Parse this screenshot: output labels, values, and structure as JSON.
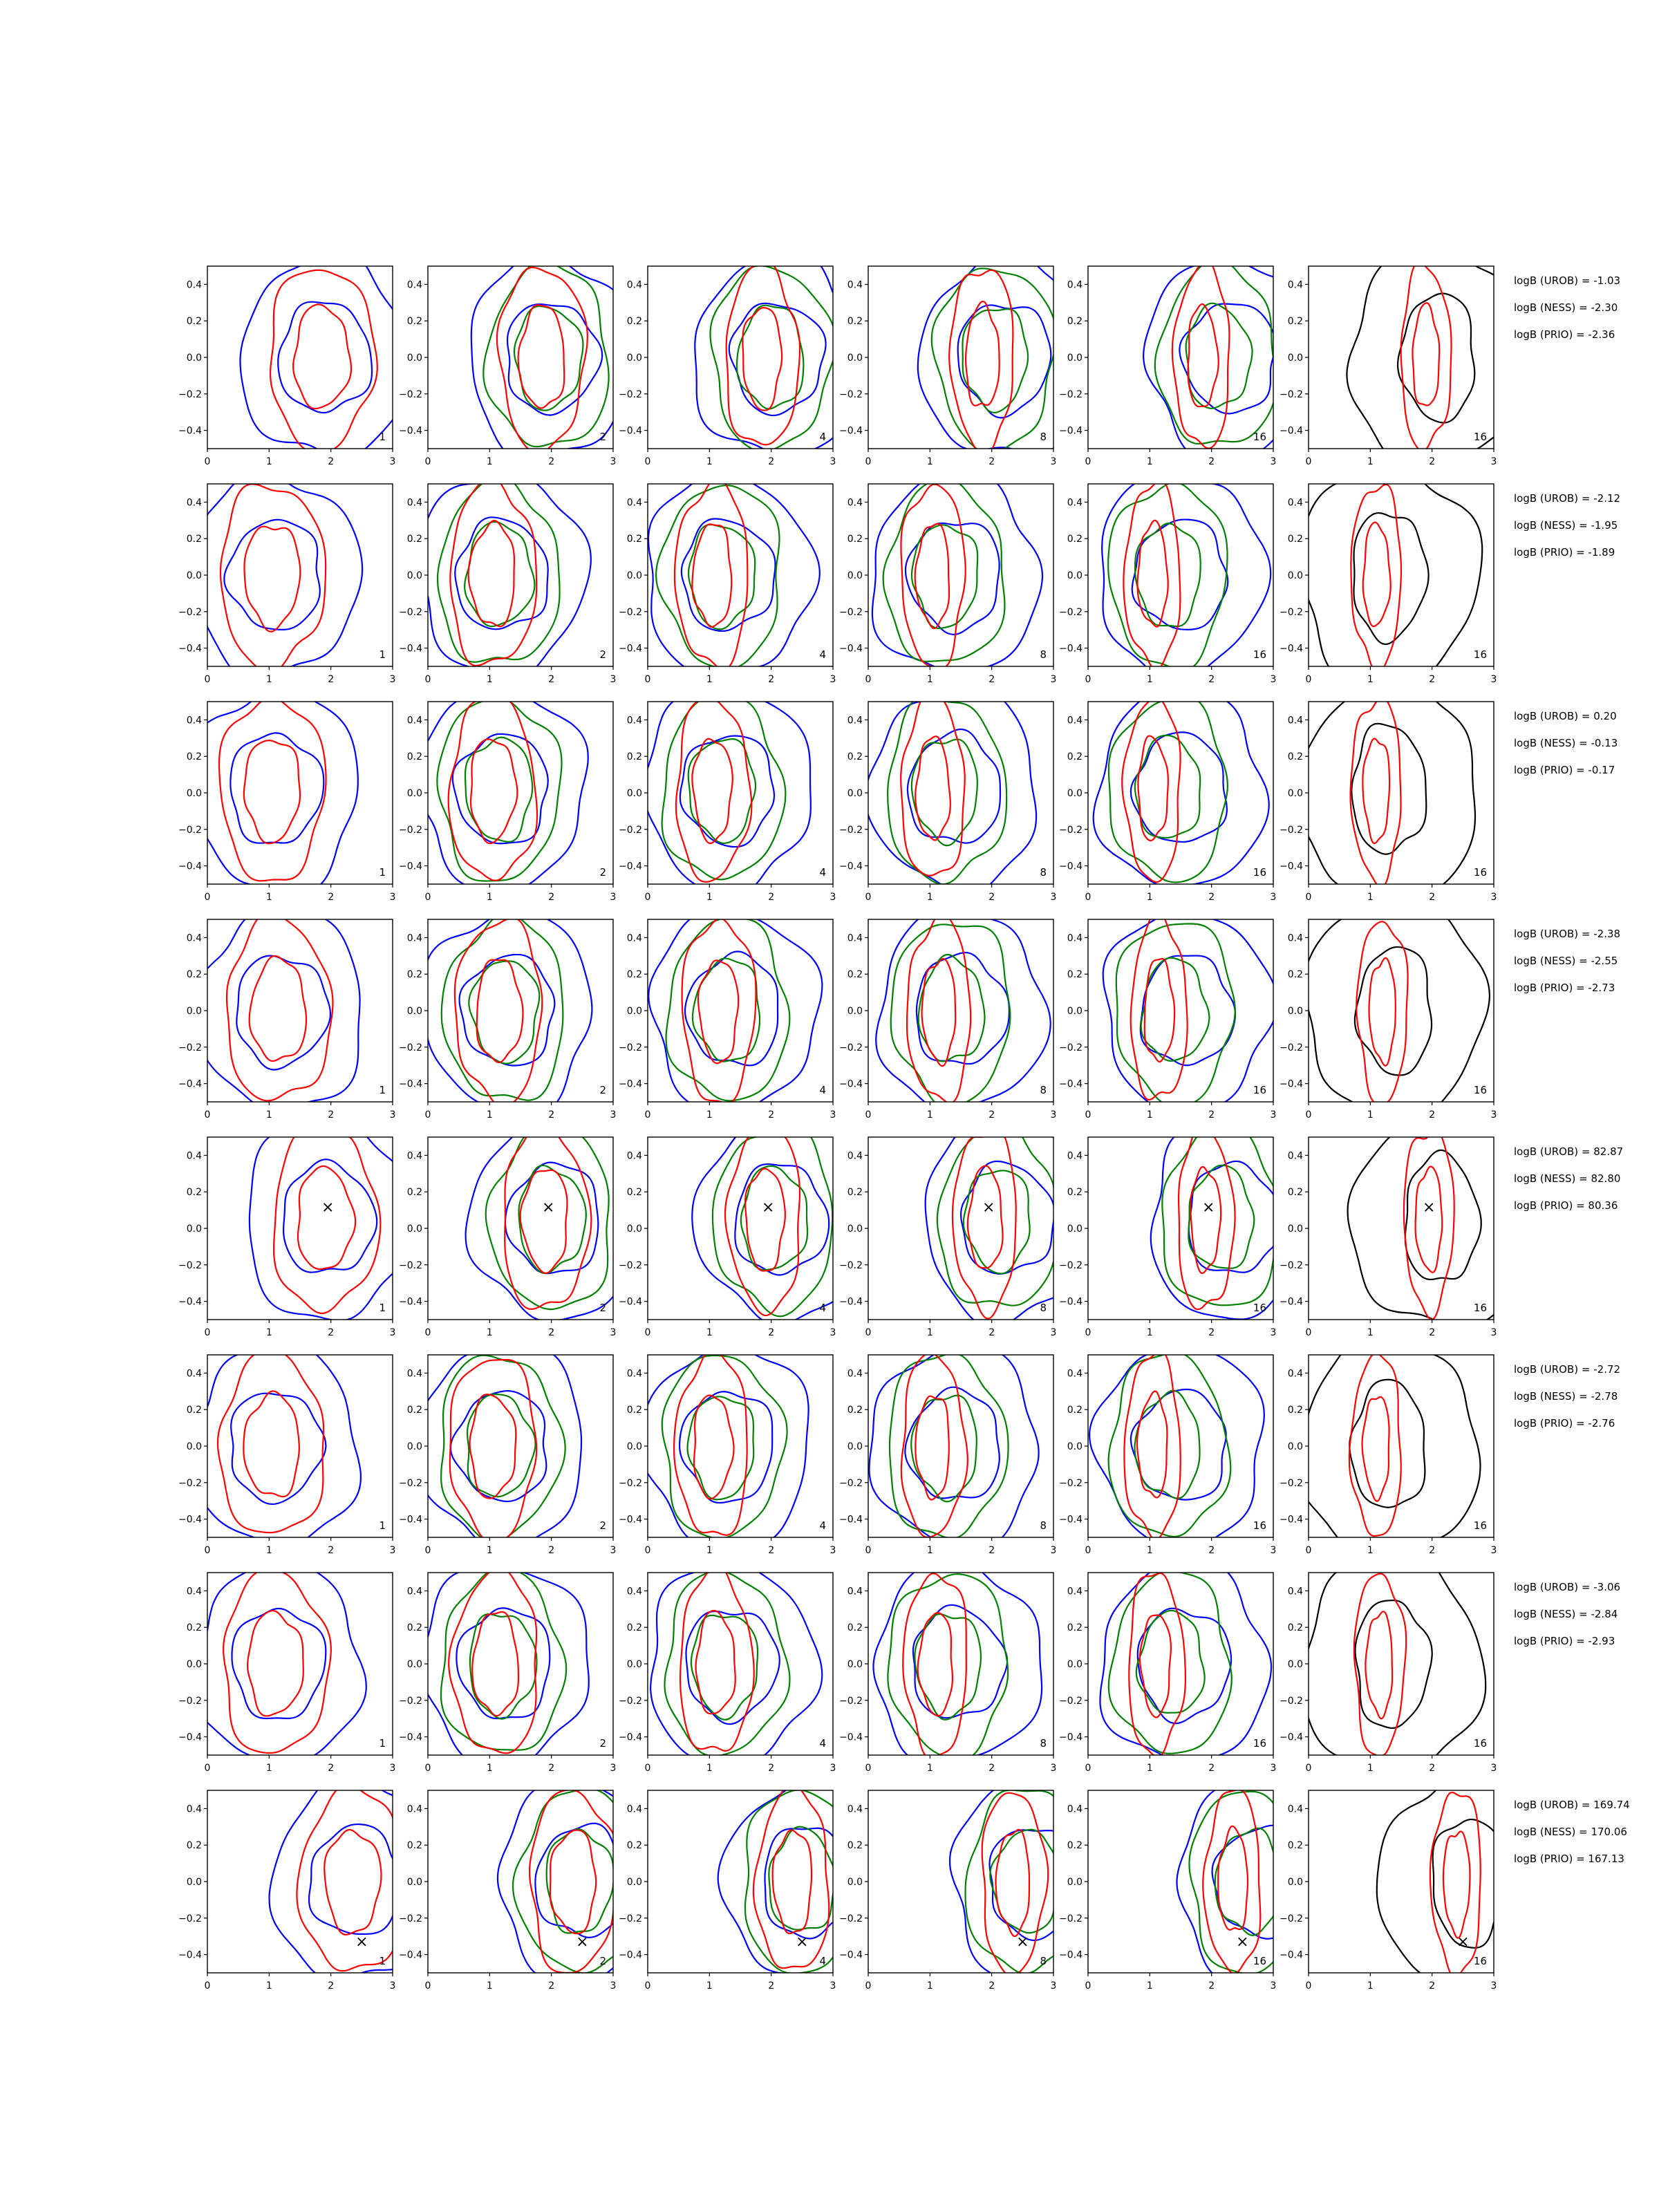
{
  "chart_data": {
    "type": "contour-grid",
    "rows": 8,
    "columns": 6,
    "xlim": [
      0,
      3
    ],
    "ylim": [
      -0.5,
      0.5
    ],
    "x_ticks": [
      0,
      1,
      2,
      3
    ],
    "y_ticks": [
      -0.4,
      -0.2,
      0.0,
      0.2,
      0.4
    ],
    "y_tick_labels": [
      "−0.4",
      "−0.2",
      "0.0",
      "0.2",
      "0.4"
    ],
    "column_labels": [
      "1",
      "2",
      "4",
      "8",
      "16",
      "16"
    ],
    "series_colors": {
      "blue": "#0000ff",
      "green": "#008000",
      "red": "#ff0000",
      "black": "#000000"
    },
    "marker_symbol": "×",
    "row_data": [
      {
        "logB": [
          "logB (UROB) = -1.03",
          "logB (NESS) = -2.30",
          "logB (PRIO) = -2.36"
        ],
        "center": [
          1.9,
          0.0
        ],
        "marker": null
      },
      {
        "logB": [
          "logB (UROB) = -2.12",
          "logB (NESS) = -1.95",
          "logB (PRIO) = -1.89"
        ],
        "center": [
          1.1,
          0.0
        ],
        "marker": null
      },
      {
        "logB": [
          "logB (UROB) = 0.20",
          "logB (NESS) = -0.13",
          "logB (PRIO) = -0.17"
        ],
        "center": [
          1.1,
          0.02
        ],
        "marker": null
      },
      {
        "logB": [
          "logB (UROB) = -2.38",
          "logB (NESS) = -2.55",
          "logB (PRIO) = -2.73"
        ],
        "center": [
          1.2,
          0.0
        ],
        "marker": null
      },
      {
        "logB": [
          "logB (UROB) = 82.87",
          "logB (NESS) = 82.80",
          "logB (PRIO) = 80.36"
        ],
        "center": [
          1.95,
          0.05
        ],
        "marker": [
          1.95,
          0.115
        ]
      },
      {
        "logB": [
          "logB (UROB) = -2.72",
          "logB (NESS) = -2.78",
          "logB (PRIO) = -2.76"
        ],
        "center": [
          1.1,
          0.0
        ],
        "marker": null
      },
      {
        "logB": [
          "logB (UROB) = -3.06",
          "logB (NESS) = -2.84",
          "logB (PRIO) = -2.93"
        ],
        "center": [
          1.15,
          0.0
        ],
        "marker": null
      },
      {
        "logB": [
          "logB (UROB) = 169.74",
          "logB (NESS) = 170.06",
          "logB (PRIO) = 167.13"
        ],
        "center": [
          2.4,
          0.0
        ],
        "marker": [
          2.5,
          -0.33
        ]
      }
    ]
  }
}
